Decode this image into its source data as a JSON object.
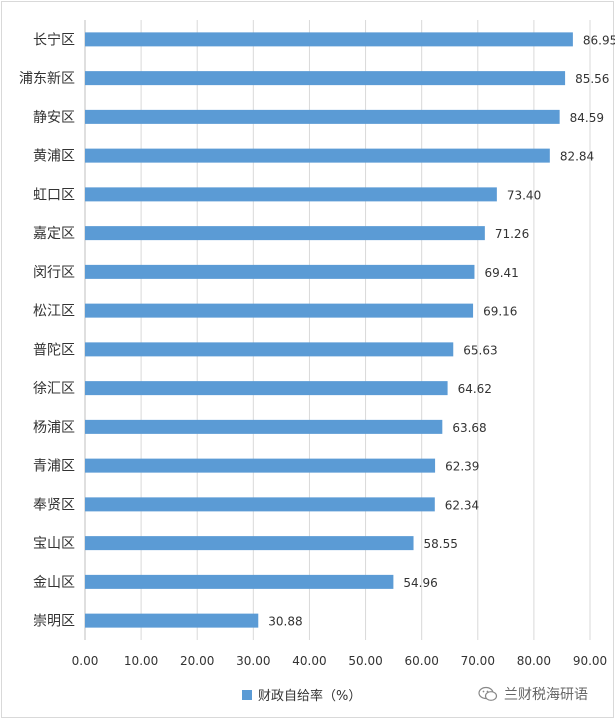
{
  "chart_data": {
    "type": "bar",
    "orientation": "horizontal",
    "categories": [
      "长宁区",
      "浦东新区",
      "静安区",
      "黄浦区",
      "虹口区",
      "嘉定区",
      "闵行区",
      "松江区",
      "普陀区",
      "徐汇区",
      "杨浦区",
      "青浦区",
      "奉贤区",
      "宝山区",
      "金山区",
      "崇明区"
    ],
    "value_labels": [
      "86.95",
      "85.56",
      "84.59",
      "82.84",
      "73.40",
      "71.26",
      "69.41",
      "69.16",
      "65.63",
      "64.62",
      "63.68",
      "62.39",
      "62.34",
      "58.55",
      "54.96",
      "30.88"
    ],
    "series": [
      {
        "name": "财政自给率（%）",
        "values": [
          86.95,
          85.56,
          84.59,
          82.84,
          73.4,
          71.26,
          69.41,
          69.16,
          65.63,
          64.62,
          63.68,
          62.39,
          62.34,
          58.55,
          54.96,
          30.88
        ],
        "color": "#5b9bd5"
      }
    ],
    "xlim": [
      0,
      90
    ],
    "x_ticks": [
      "0.00",
      "10.00",
      "20.00",
      "30.00",
      "40.00",
      "50.00",
      "60.00",
      "70.00",
      "80.00",
      "90.00"
    ],
    "x_tick_values": [
      0,
      10,
      20,
      30,
      40,
      50,
      60,
      70,
      80,
      90
    ],
    "grid": true,
    "legend_position": "bottom"
  },
  "watermark": {
    "text": "兰财税海研语",
    "icon": "wechat-icon"
  }
}
